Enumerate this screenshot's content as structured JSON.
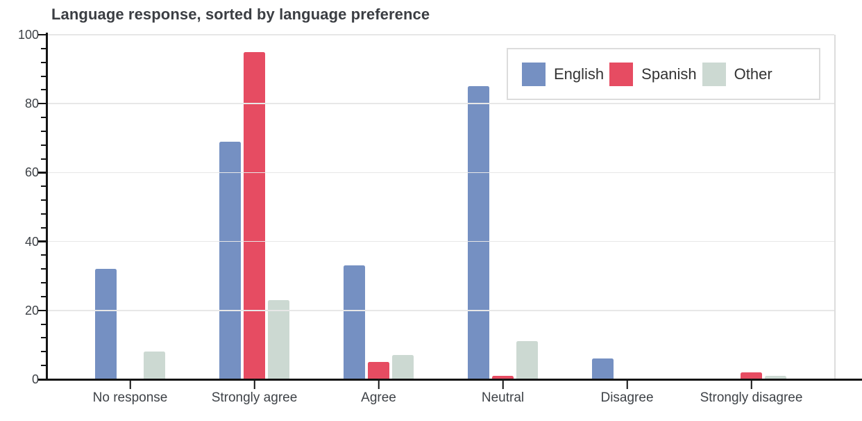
{
  "chart_data": {
    "type": "bar",
    "title": "Language response, sorted by language preference",
    "categories": [
      "No response",
      "Strongly agree",
      "Agree",
      "Neutral",
      "Disagree",
      "Strongly disagree"
    ],
    "series": [
      {
        "name": "English",
        "color": "#7590c2",
        "values": [
          32,
          69,
          33,
          85,
          6,
          0
        ]
      },
      {
        "name": "Spanish",
        "color": "#e64c62",
        "values": [
          0,
          95,
          5,
          1,
          0,
          2
        ]
      },
      {
        "name": "Other",
        "color": "#ccd9d2",
        "values": [
          8,
          23,
          7,
          11,
          0,
          1
        ]
      }
    ],
    "xlabel": "",
    "ylabel": "",
    "ylim": [
      0,
      100
    ],
    "y_major_ticks": [
      0,
      20,
      40,
      60,
      80,
      100
    ],
    "y_minor_step": 4,
    "grid": "horizontal-major",
    "legend_position": "top-right"
  },
  "style": {
    "background": "#ffffff",
    "axis_color": "#141414",
    "grid_color": "#e7e7e7",
    "plot_border_color": "#dcdcdc",
    "title_color": "#3b3e43",
    "tick_label_color": "#3e4247",
    "legend_text_color": "#333333"
  }
}
